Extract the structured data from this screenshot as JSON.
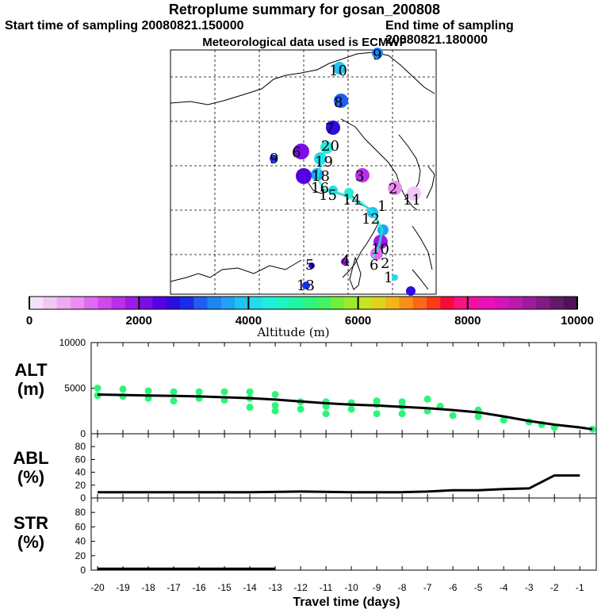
{
  "header": {
    "title": "Retroplume summary for gosan_200808",
    "start": "Start time of sampling 20080821.150000",
    "end": "End time of sampling 20080821.180000",
    "met": "Meteorological data used is ECMWF"
  },
  "colorbar": {
    "colors": [
      "#f6e2f7",
      "#f3c7f4",
      "#efabf1",
      "#e98ff0",
      "#de6cee",
      "#cf49ec",
      "#bb2eea",
      "#9f1ae8",
      "#7c0ce5",
      "#5500e0",
      "#2e0ce0",
      "#1a2bea",
      "#1f5ef0",
      "#1f84f3",
      "#1fa3f4",
      "#22c1f4",
      "#22dbef",
      "#20eddc",
      "#1ff5c0",
      "#20f5a0",
      "#2df582",
      "#45f360",
      "#70f03a",
      "#9eeb2a",
      "#c4e51f",
      "#e3d21b",
      "#f4b41a",
      "#f98f19",
      "#fb6918",
      "#fb3a18",
      "#fa0a3a",
      "#f9137e",
      "#f40fa3",
      "#ea0fbb",
      "#d512bc",
      "#bb18ae",
      "#9e1a9b",
      "#821a84",
      "#66176a",
      "#501257"
    ],
    "ticks": [
      "0",
      "2000",
      "4000",
      "6000",
      "8000",
      "10000"
    ],
    "label": "Altitude (m)"
  },
  "map_labels": [
    {
      "t": "9",
      "c": "#1f84f3"
    },
    {
      "t": "10",
      "c": "#22c1f4"
    },
    {
      "t": "8",
      "c": "#1f5ef0"
    },
    {
      "t": "7",
      "c": "#2e0ce0"
    },
    {
      "t": "20",
      "c": "#20eddc"
    },
    {
      "t": "6",
      "c": "#7c0ce5"
    },
    {
      "t": "19",
      "c": "#22dbef"
    },
    {
      "t": "9",
      "c": "#1a2bea"
    },
    {
      "t": "18",
      "c": "#1fa3f4"
    },
    {
      "t": "3",
      "c": "#bb2eea"
    },
    {
      "t": "16",
      "c": "#5500e0"
    },
    {
      "t": "2",
      "c": "#e98ff0"
    },
    {
      "t": "15",
      "c": "#22dbef"
    },
    {
      "t": "14",
      "c": "#20eddc"
    },
    {
      "t": "1",
      "c": "#efabf1"
    },
    {
      "t": "11",
      "c": "#f3c7f4"
    },
    {
      "t": "12",
      "c": "#22c1f4"
    },
    {
      "t": "10",
      "c": "#1fa3f4"
    },
    {
      "t": "6",
      "c": "#9f1ae8"
    },
    {
      "t": "2",
      "c": "#de6cee"
    },
    {
      "t": "5",
      "c": "#2e0ce0"
    },
    {
      "t": "4",
      "c": "#9f1ae8"
    },
    {
      "t": "1",
      "c": "#22dbef"
    },
    {
      "t": "13",
      "c": "#1a2bea"
    }
  ],
  "chart_data": [
    {
      "type": "scatter+line",
      "title": "ALT",
      "ylabel": "(m)",
      "ylim": [
        0,
        10000
      ],
      "yticks": [
        "10000",
        "5000",
        "0"
      ],
      "x": [
        -20,
        -19,
        -18,
        -17,
        -16,
        -15,
        -14,
        -13,
        -12,
        -11,
        -10,
        -9,
        -8,
        -7,
        -6,
        -5,
        -4,
        -3,
        -2,
        -1,
        -0.5
      ],
      "line": [
        4300,
        4250,
        4200,
        4150,
        4100,
        4000,
        3900,
        3750,
        3550,
        3350,
        3200,
        3100,
        2950,
        2800,
        2600,
        2350,
        1900,
        1400,
        1000,
        700,
        500
      ],
      "points": [
        [
          -20,
          5000
        ],
        [
          -20,
          4200
        ],
        [
          -19,
          4900
        ],
        [
          -19,
          4100
        ],
        [
          -18,
          4700
        ],
        [
          -18,
          3900
        ],
        [
          -17,
          4600
        ],
        [
          -17,
          3600
        ],
        [
          -16,
          4600
        ],
        [
          -16,
          3900
        ],
        [
          -15,
          4600
        ],
        [
          -15,
          3700
        ],
        [
          -14,
          4600
        ],
        [
          -14,
          3900
        ],
        [
          -14,
          2900
        ],
        [
          -13,
          4300
        ],
        [
          -13,
          3100
        ],
        [
          -13,
          2500
        ],
        [
          -12,
          3500
        ],
        [
          -12,
          2700
        ],
        [
          -11,
          3500
        ],
        [
          -11,
          3000
        ],
        [
          -11,
          2200
        ],
        [
          -10,
          3400
        ],
        [
          -10,
          2700
        ],
        [
          -9,
          3600
        ],
        [
          -9,
          3200
        ],
        [
          -9,
          2200
        ],
        [
          -8,
          3500
        ],
        [
          -8,
          3000
        ],
        [
          -8,
          2200
        ],
        [
          -7,
          3800
        ],
        [
          -7,
          2500
        ],
        [
          -6.5,
          3000
        ],
        [
          -6,
          2000
        ],
        [
          -5,
          2600
        ],
        [
          -5,
          1900
        ],
        [
          -4,
          1500
        ],
        [
          -3,
          1300
        ],
        [
          -2.5,
          1000
        ],
        [
          -2,
          700
        ],
        [
          -0.5,
          500
        ]
      ],
      "point_color": "#2df57a"
    },
    {
      "type": "line",
      "title": "ABL",
      "ylabel": "(%)",
      "ylim": [
        0,
        100
      ],
      "yticks": [
        "80",
        "60",
        "40",
        "20",
        "0"
      ],
      "x": [
        -20,
        -18,
        -16,
        -14,
        -12,
        -10,
        -8,
        -7,
        -6,
        -5,
        -4,
        -3,
        -2,
        -1
      ],
      "values": [
        9,
        9,
        9,
        9,
        10,
        9,
        9,
        10,
        12,
        12,
        14,
        15,
        35,
        35
      ]
    },
    {
      "type": "line",
      "title": "STR",
      "ylabel": "(%)",
      "ylim": [
        0,
        100
      ],
      "yticks": [
        "80",
        "60",
        "40",
        "20",
        "0"
      ],
      "x": [
        -20,
        -18,
        -16,
        -14,
        -13
      ],
      "values": [
        2,
        2,
        2,
        2,
        2
      ]
    }
  ],
  "xaxis": {
    "ticks": [
      "-20",
      "-19",
      "-18",
      "-17",
      "-16",
      "-15",
      "-14",
      "-13",
      "-12",
      "-11",
      "-10",
      "-9",
      "-8",
      "-7",
      "-6",
      "-5",
      "-4",
      "-3",
      "-2",
      "-1"
    ],
    "label": "Travel time (days)"
  }
}
